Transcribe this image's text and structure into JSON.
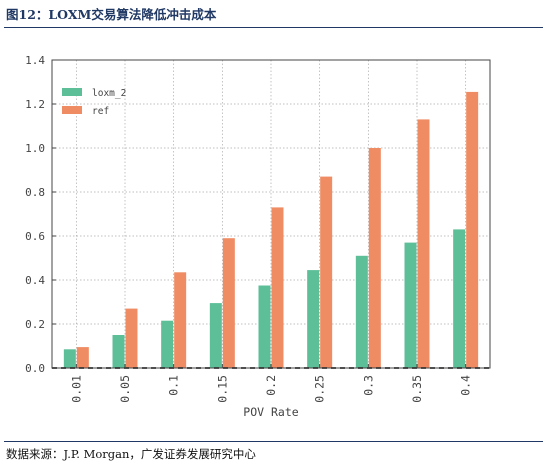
{
  "figure": {
    "title": "图12：LOXM交易算法降低冲击成本",
    "source": "数据来源：J.P. Morgan，广发证券发展研究中心"
  },
  "colors": {
    "title": "#1f3864",
    "series_loxm": "#5cbf98",
    "series_ref": "#f08c64",
    "axis": "#444444",
    "grid": "#aaaaaa",
    "reference_line": "#222222"
  },
  "chart_data": {
    "type": "bar",
    "title": "",
    "xlabel": "POV Rate",
    "ylabel": "",
    "categories": [
      "0.01",
      "0.05",
      "0.1",
      "0.15",
      "0.2",
      "0.25",
      "0.3",
      "0.35",
      "0.4"
    ],
    "series": [
      {
        "name": "loxm_2",
        "color": "#5cbf98",
        "values": [
          0.085,
          0.15,
          0.215,
          0.295,
          0.375,
          0.445,
          0.51,
          0.57,
          0.63
        ]
      },
      {
        "name": "ref",
        "color": "#f08c64",
        "values": [
          0.095,
          0.27,
          0.435,
          0.59,
          0.73,
          0.87,
          1.0,
          1.13,
          1.255
        ]
      }
    ],
    "ylim": [
      0,
      1.4
    ],
    "yticks": [
      "0.0",
      "0.2",
      "0.4",
      "0.6",
      "0.8",
      "1.0",
      "1.2",
      "1.4"
    ],
    "grid": true,
    "legend": "top-left",
    "baseline": 0
  }
}
